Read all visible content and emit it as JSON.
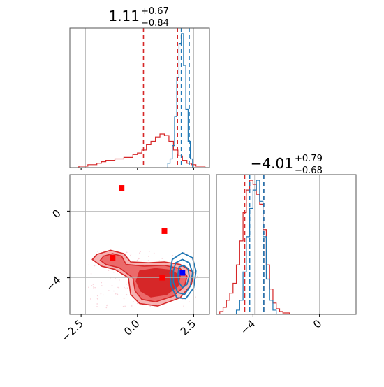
{
  "chart_data": {
    "type": "corner",
    "parameters": [
      {
        "median": "1.11",
        "err_plus": "+0.67",
        "err_minus": "−0.84"
      },
      {
        "median": "−4.01",
        "err_plus": "+0.79",
        "err_minus": "−0.68"
      }
    ],
    "colors": {
      "series_a": "#d62728",
      "series_b": "#1f77b4",
      "marker_red": "#ff0000",
      "marker_blue": "#0000ff",
      "grid": "#b0b0b0"
    },
    "p1_axis": {
      "range": [
        -3.0,
        3.2
      ],
      "ticks": [
        -2.5,
        0.0,
        2.5
      ],
      "tick_labels": [
        "−2.5",
        "0.0",
        "2.5"
      ],
      "ref_lines": [
        -2.3,
        2.5
      ]
    },
    "p2_axis": {
      "range": [
        -6.2,
        2.2
      ],
      "ticks": [
        -4,
        0
      ],
      "tick_labels": [
        "−4",
        "0"
      ],
      "ref_line": -3.9
    },
    "hist_p1": {
      "series_a": {
        "quantiles": [
          0.27,
          1.78
        ],
        "bins": [
          -2.6,
          -2.4,
          -2.2,
          -2.0,
          -1.8,
          -1.6,
          -1.4,
          -1.2,
          -1.0,
          -0.8,
          -0.6,
          -0.4,
          -0.2,
          0.0,
          0.2,
          0.4,
          0.6,
          0.8,
          1.0,
          1.2,
          1.4,
          1.6,
          1.8,
          2.0,
          2.2,
          2.4,
          2.6,
          2.8,
          3.0
        ],
        "counts": [
          0.01,
          0.01,
          0.02,
          0.02,
          0.03,
          0.04,
          0.05,
          0.05,
          0.06,
          0.06,
          0.07,
          0.07,
          0.09,
          0.1,
          0.12,
          0.16,
          0.18,
          0.21,
          0.23,
          0.22,
          0.18,
          0.12,
          0.08,
          0.05,
          0.03,
          0.02,
          0.01,
          0.01
        ]
      },
      "series_b": {
        "quantiles": [
          1.95,
          2.3
        ],
        "bins": [
          1.35,
          1.45,
          1.55,
          1.65,
          1.75,
          1.85,
          1.95,
          2.05,
          2.15,
          2.25,
          2.35,
          2.45
        ],
        "counts": [
          0.03,
          0.06,
          0.15,
          0.35,
          0.62,
          0.85,
          0.92,
          0.7,
          0.4,
          0.18,
          0.06
        ]
      }
    },
    "hist_p2": {
      "series_a": {
        "quantiles": [
          -4.5,
          -3.35
        ],
        "bins": [
          -6.0,
          -5.8,
          -5.6,
          -5.4,
          -5.2,
          -5.0,
          -4.8,
          -4.6,
          -4.4,
          -4.2,
          -4.0,
          -3.8,
          -3.6,
          -3.4,
          -3.2,
          -3.0,
          -2.8,
          -2.6,
          -2.4,
          -2.2,
          -2.0,
          -1.8
        ],
        "counts": [
          0.02,
          0.05,
          0.1,
          0.15,
          0.22,
          0.35,
          0.52,
          0.72,
          0.88,
          0.95,
          0.92,
          0.85,
          0.78,
          0.6,
          0.35,
          0.18,
          0.08,
          0.04,
          0.02,
          0.01,
          0.01
        ]
      },
      "series_b": {
        "quantiles": [
          -4.2,
          -3.35
        ],
        "bins": [
          -5.0,
          -4.8,
          -4.6,
          -4.4,
          -4.2,
          -4.0,
          -3.8,
          -3.6,
          -3.4,
          -3.2,
          -3.0,
          -2.8,
          -2.6
        ],
        "counts": [
          0.03,
          0.1,
          0.3,
          0.55,
          0.75,
          0.88,
          0.95,
          0.8,
          0.55,
          0.25,
          0.1,
          0.03
        ]
      }
    },
    "scatter": {
      "red_squares": [
        [
          -0.7,
          1.4
        ],
        [
          1.2,
          -1.2
        ],
        [
          -1.1,
          -2.8
        ],
        [
          1.1,
          -4.0
        ]
      ],
      "blue_square": [
        2.0,
        -3.7
      ],
      "series_a_contours": [
        [
          [
            -1.8,
            -2.6
          ],
          [
            -1.2,
            -2.35
          ],
          [
            -0.6,
            -2.55
          ],
          [
            -0.3,
            -3.05
          ],
          [
            0.5,
            -3.1
          ],
          [
            1.2,
            -3.05
          ],
          [
            1.9,
            -3.2
          ],
          [
            2.5,
            -3.7
          ],
          [
            2.4,
            -4.4
          ],
          [
            1.9,
            -5.2
          ],
          [
            0.9,
            -5.7
          ],
          [
            0.1,
            -5.55
          ],
          [
            -0.3,
            -5.0
          ],
          [
            -0.4,
            -4.0
          ],
          [
            -1.0,
            -3.5
          ],
          [
            -1.6,
            -3.3
          ],
          [
            -2.0,
            -2.9
          ]
        ],
        [
          [
            -1.5,
            -2.7
          ],
          [
            -1.1,
            -2.55
          ],
          [
            -0.7,
            -2.7
          ],
          [
            -0.5,
            -3.2
          ],
          [
            0.3,
            -3.3
          ],
          [
            1.2,
            -3.25
          ],
          [
            1.9,
            -3.45
          ],
          [
            2.2,
            -3.9
          ],
          [
            2.1,
            -4.5
          ],
          [
            1.6,
            -5.1
          ],
          [
            0.8,
            -5.45
          ],
          [
            0.2,
            -5.3
          ],
          [
            -0.1,
            -4.8
          ],
          [
            -0.2,
            -4.0
          ],
          [
            -0.8,
            -3.4
          ],
          [
            -1.4,
            -3.2
          ],
          [
            -1.65,
            -2.95
          ]
        ],
        [
          [
            0.1,
            -3.6
          ],
          [
            0.8,
            -3.45
          ],
          [
            1.5,
            -3.55
          ],
          [
            1.9,
            -3.9
          ],
          [
            1.8,
            -4.5
          ],
          [
            1.3,
            -5.0
          ],
          [
            0.6,
            -5.15
          ],
          [
            0.15,
            -4.8
          ],
          [
            -0.05,
            -4.2
          ]
        ]
      ],
      "series_b_contours": [
        [
          [
            1.55,
            -2.9
          ],
          [
            2.0,
            -2.5
          ],
          [
            2.45,
            -2.8
          ],
          [
            2.6,
            -3.6
          ],
          [
            2.5,
            -4.6
          ],
          [
            2.15,
            -5.25
          ],
          [
            1.75,
            -5.2
          ],
          [
            1.5,
            -4.5
          ],
          [
            1.45,
            -3.7
          ]
        ],
        [
          [
            1.7,
            -3.1
          ],
          [
            2.0,
            -2.9
          ],
          [
            2.3,
            -3.1
          ],
          [
            2.45,
            -3.7
          ],
          [
            2.35,
            -4.5
          ],
          [
            2.1,
            -5.0
          ],
          [
            1.8,
            -4.9
          ],
          [
            1.6,
            -4.3
          ],
          [
            1.6,
            -3.6
          ]
        ],
        [
          [
            1.85,
            -3.35
          ],
          [
            2.05,
            -3.25
          ],
          [
            2.25,
            -3.45
          ],
          [
            2.3,
            -3.9
          ],
          [
            2.2,
            -4.4
          ],
          [
            2.0,
            -4.6
          ],
          [
            1.85,
            -4.3
          ],
          [
            1.8,
            -3.8
          ]
        ]
      ]
    }
  }
}
